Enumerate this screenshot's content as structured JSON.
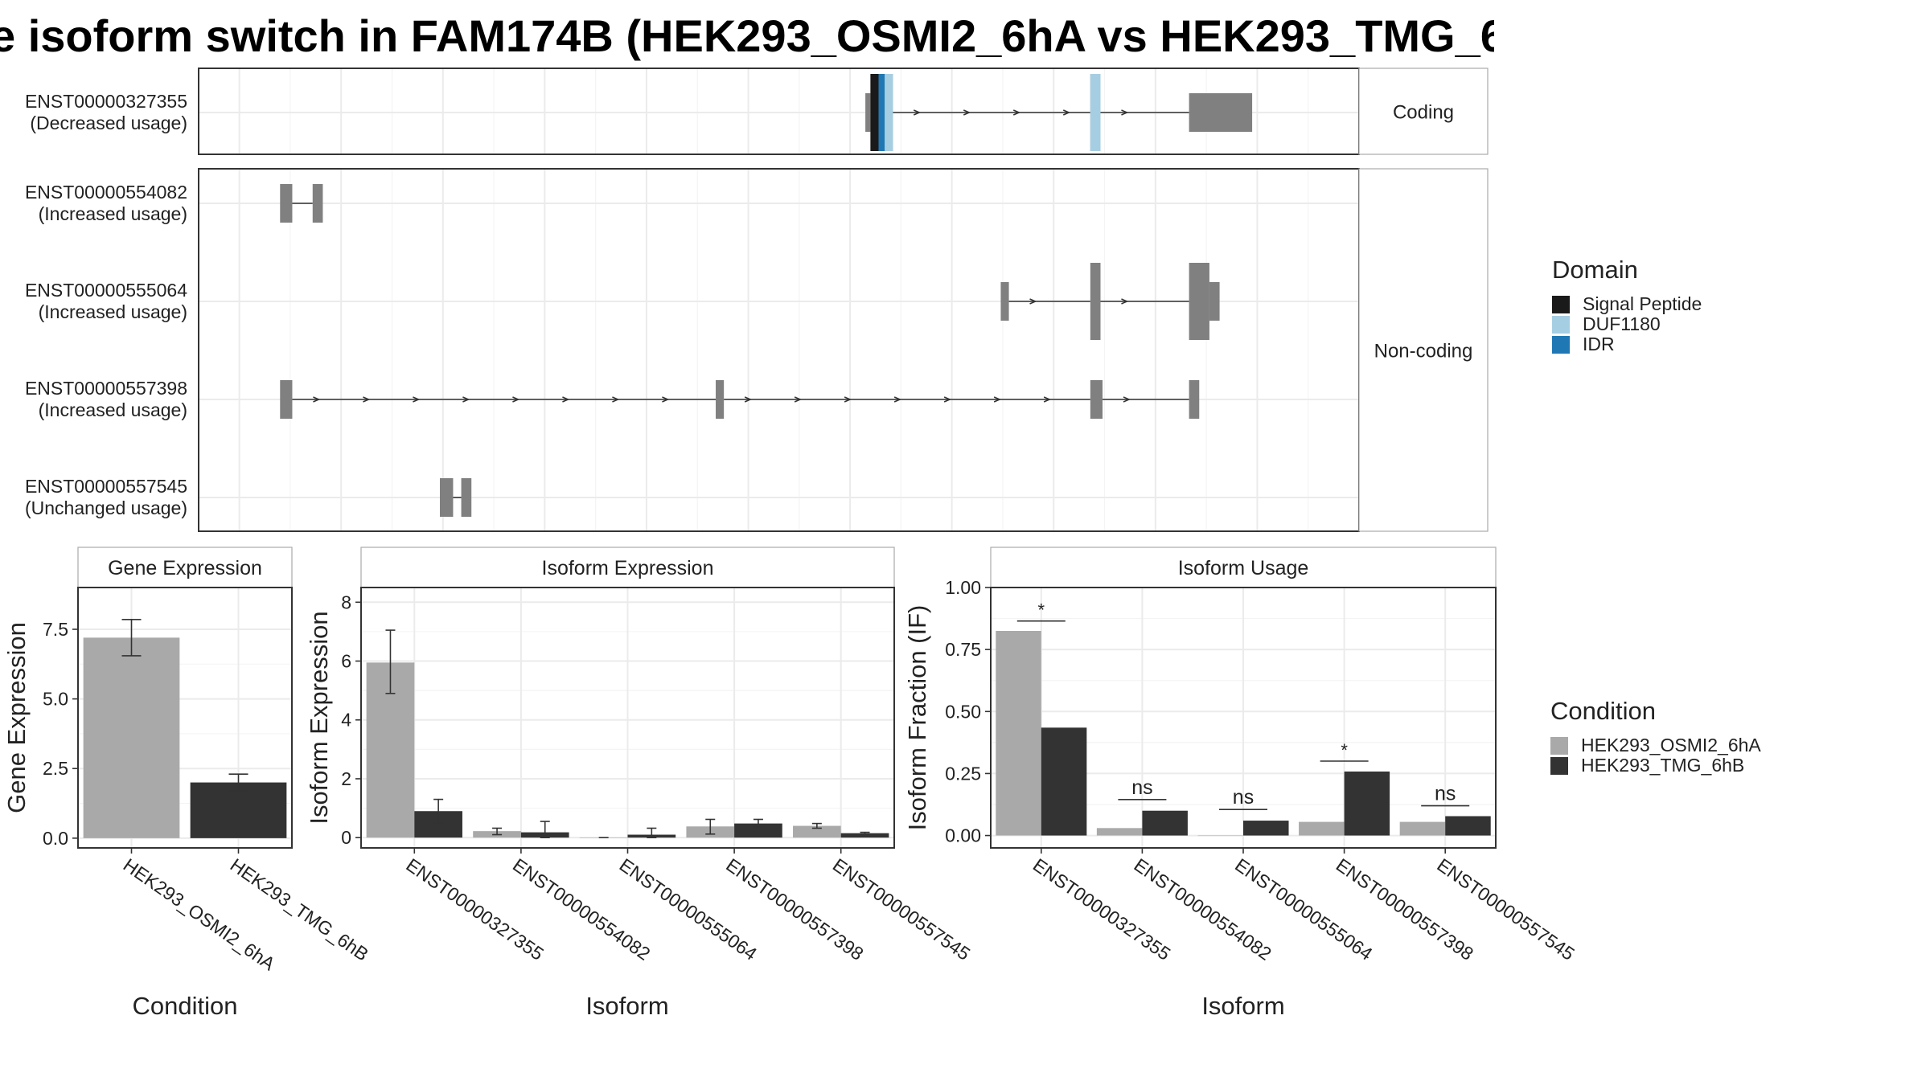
{
  "title": "e isoform switch in FAM174B (HEK293_OSMI2_6hA vs HEK293_TMG_6h",
  "colors": {
    "signal_peptide": "#1a1a1a",
    "duf1180": "#a6cee3",
    "idr": "#1f78b4",
    "exon": "#808080",
    "cond_a": "#a9a9a9",
    "cond_b": "#333333"
  },
  "legend": {
    "domain": {
      "title": "Domain",
      "items": [
        "Signal Peptide",
        "DUF1180",
        "IDR"
      ]
    },
    "condition": {
      "title": "Condition",
      "items": [
        "HEK293_OSMI2_6hA",
        "HEK293_TMG_6hB"
      ]
    }
  },
  "chart_data": [
    {
      "type": "gene-structure",
      "strips": [
        "Coding",
        "Non-coding"
      ],
      "transcripts": [
        {
          "id": "ENST00000327355",
          "usage": "(Decreased usage)",
          "panel": "Coding",
          "exons": [
            [
              1215,
              1220
            ],
            [
              1220,
              1228
            ],
            [
              1228,
              1234
            ],
            [
              1234,
              1242
            ],
            [
              1436,
              1446
            ],
            [
              1533,
              1595
            ]
          ],
          "exon_heights": [
            "small",
            "big",
            "big",
            "big",
            "big",
            "small"
          ],
          "domains": [
            {
              "name": "Signal Peptide",
              "start": 1220,
              "end": 1228
            },
            {
              "name": "IDR",
              "start": 1228,
              "end": 1234
            },
            {
              "name": "DUF1180",
              "start": 1234,
              "end": 1242
            },
            {
              "name": "DUF1180",
              "start": 1436,
              "end": 1446
            }
          ]
        },
        {
          "id": "ENST00000554082",
          "usage": "(Increased usage)",
          "panel": "Non-coding",
          "exons": [
            [
              640,
              652
            ],
            [
              672,
              682
            ]
          ]
        },
        {
          "id": "ENST00000555064",
          "usage": "(Increased usage)",
          "panel": "Non-coding",
          "exons": [
            [
              1348,
              1356
            ],
            [
              1436,
              1446
            ],
            [
              1533,
              1553
            ],
            [
              1553,
              1563
            ]
          ]
        },
        {
          "id": "ENST00000557398",
          "usage": "(Increased usage)",
          "panel": "Non-coding",
          "exons": [
            [
              640,
              652
            ],
            [
              1068,
              1076
            ],
            [
              1436,
              1448
            ],
            [
              1533,
              1543
            ]
          ]
        },
        {
          "id": "ENST00000557545",
          "usage": "(Unchanged usage)",
          "panel": "Non-coding",
          "exons": [
            [
              797,
              810
            ],
            [
              818,
              828
            ]
          ]
        }
      ]
    },
    {
      "type": "bar",
      "title": "Gene Expression",
      "xlabel": "Condition",
      "ylabel": "Gene Expression",
      "categories": [
        "HEK293_OSMI2_6hA",
        "HEK293_TMG_6hB"
      ],
      "values": [
        7.2,
        2.0
      ],
      "errors": [
        [
          6.55,
          7.85
        ],
        [
          1.7,
          2.3
        ]
      ],
      "ylim": [
        -0.35,
        9.0
      ],
      "yticks": [
        0.0,
        2.5,
        5.0,
        7.5
      ],
      "yticklabels": [
        "0.0",
        "2.5",
        "5.0",
        "7.5"
      ]
    },
    {
      "type": "bar",
      "title": "Isoform Expression",
      "xlabel": "Isoform",
      "ylabel": "Isoform Expression",
      "categories": [
        "ENST00000327355",
        "ENST00000554082",
        "ENST00000555064",
        "ENST00000557398",
        "ENST00000557545"
      ],
      "series": [
        {
          "name": "HEK293_OSMI2_6hA",
          "values": [
            5.95,
            0.22,
            0.0,
            0.38,
            0.4
          ],
          "errors": [
            [
              4.9,
              7.05
            ],
            [
              0.1,
              0.32
            ],
            [
              0.0,
              0.0
            ],
            [
              0.12,
              0.62
            ],
            [
              0.32,
              0.48
            ]
          ]
        },
        {
          "name": "HEK293_TMG_6hB",
          "values": [
            0.9,
            0.18,
            0.1,
            0.48,
            0.15
          ],
          "errors": [
            [
              0.5,
              1.3
            ],
            [
              0.0,
              0.55
            ],
            [
              0.0,
              0.32
            ],
            [
              0.36,
              0.62
            ],
            [
              0.12,
              0.18
            ]
          ]
        }
      ],
      "ylim": [
        -0.35,
        8.5
      ],
      "yticks": [
        0,
        2,
        4,
        6,
        8
      ],
      "yticklabels": [
        "0",
        "2",
        "4",
        "6",
        "8"
      ]
    },
    {
      "type": "bar",
      "title": "Isoform Usage",
      "xlabel": "Isoform",
      "ylabel": "Isoform Fraction (IF)",
      "categories": [
        "ENST00000327355",
        "ENST00000554082",
        "ENST00000555064",
        "ENST00000557398",
        "ENST00000557545"
      ],
      "series": [
        {
          "name": "HEK293_OSMI2_6hA",
          "values": [
            0.825,
            0.03,
            0.0,
            0.055,
            0.055
          ]
        },
        {
          "name": "HEK293_TMG_6hB",
          "values": [
            0.435,
            0.1,
            0.06,
            0.258,
            0.078
          ]
        }
      ],
      "significance": [
        "*",
        "ns",
        "ns",
        "*",
        "ns"
      ],
      "significance_levels": [
        0.865,
        0.145,
        0.105,
        0.3,
        0.12
      ],
      "ylim": [
        -0.05,
        1.0
      ],
      "yticks": [
        0.0,
        0.25,
        0.5,
        0.75,
        1.0
      ],
      "yticklabels": [
        "0.00",
        "0.25",
        "0.50",
        "0.75",
        "1.00"
      ]
    }
  ]
}
